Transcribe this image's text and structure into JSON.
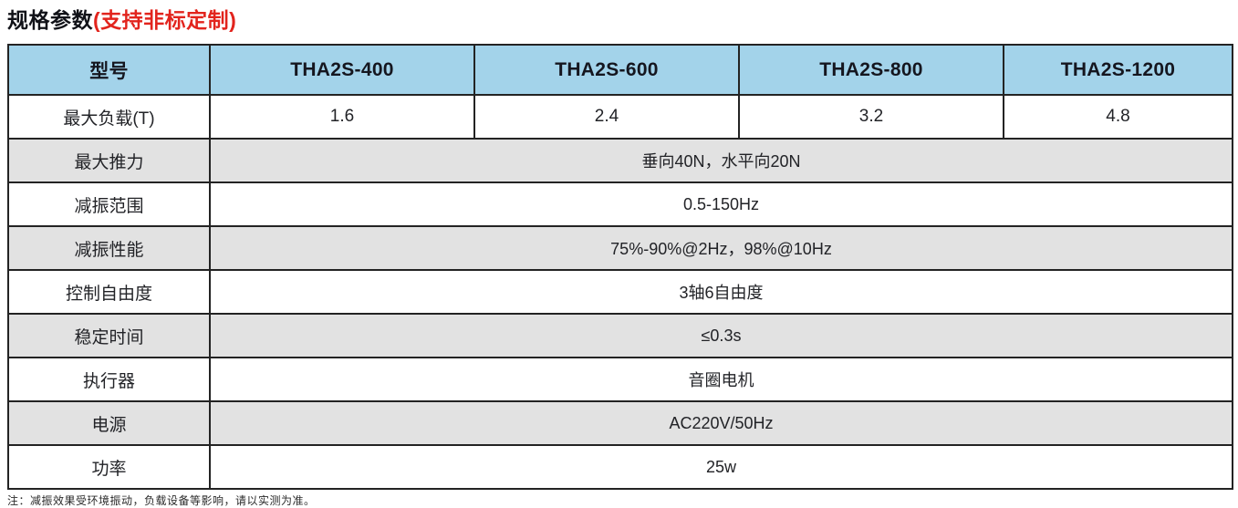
{
  "page": {
    "title": "规格参数",
    "title_suffix": "(支持非标定制)",
    "footnote": "注：减振效果受环境振动，负载设备等影响，请以实测为准。"
  },
  "colors": {
    "header_bg": "#a3d3ea",
    "shaded_row_bg": "#e2e2e2",
    "title_accent": "#e2241d",
    "border": "#232323"
  },
  "table": {
    "header": [
      "型号",
      "THA2S-400",
      "THA2S-600",
      "THA2S-800",
      "THA2S-1200"
    ],
    "rows": [
      {
        "label": "最大负载(T)",
        "values": [
          "1.6",
          "2.4",
          "3.2",
          "4.8"
        ]
      },
      {
        "label": "最大推力",
        "value": "垂向40N，水平向20N"
      },
      {
        "label": "减振范围",
        "value": "0.5-150Hz"
      },
      {
        "label": "减振性能",
        "value": "75%-90%@2Hz，98%@10Hz"
      },
      {
        "label": "控制自由度",
        "value": "3轴6自由度"
      },
      {
        "label": "稳定时间",
        "value": "≤0.3s"
      },
      {
        "label": "执行器",
        "value": "音圈电机"
      },
      {
        "label": "电源",
        "value": "AC220V/50Hz"
      },
      {
        "label": "功率",
        "value": "25w"
      }
    ]
  }
}
